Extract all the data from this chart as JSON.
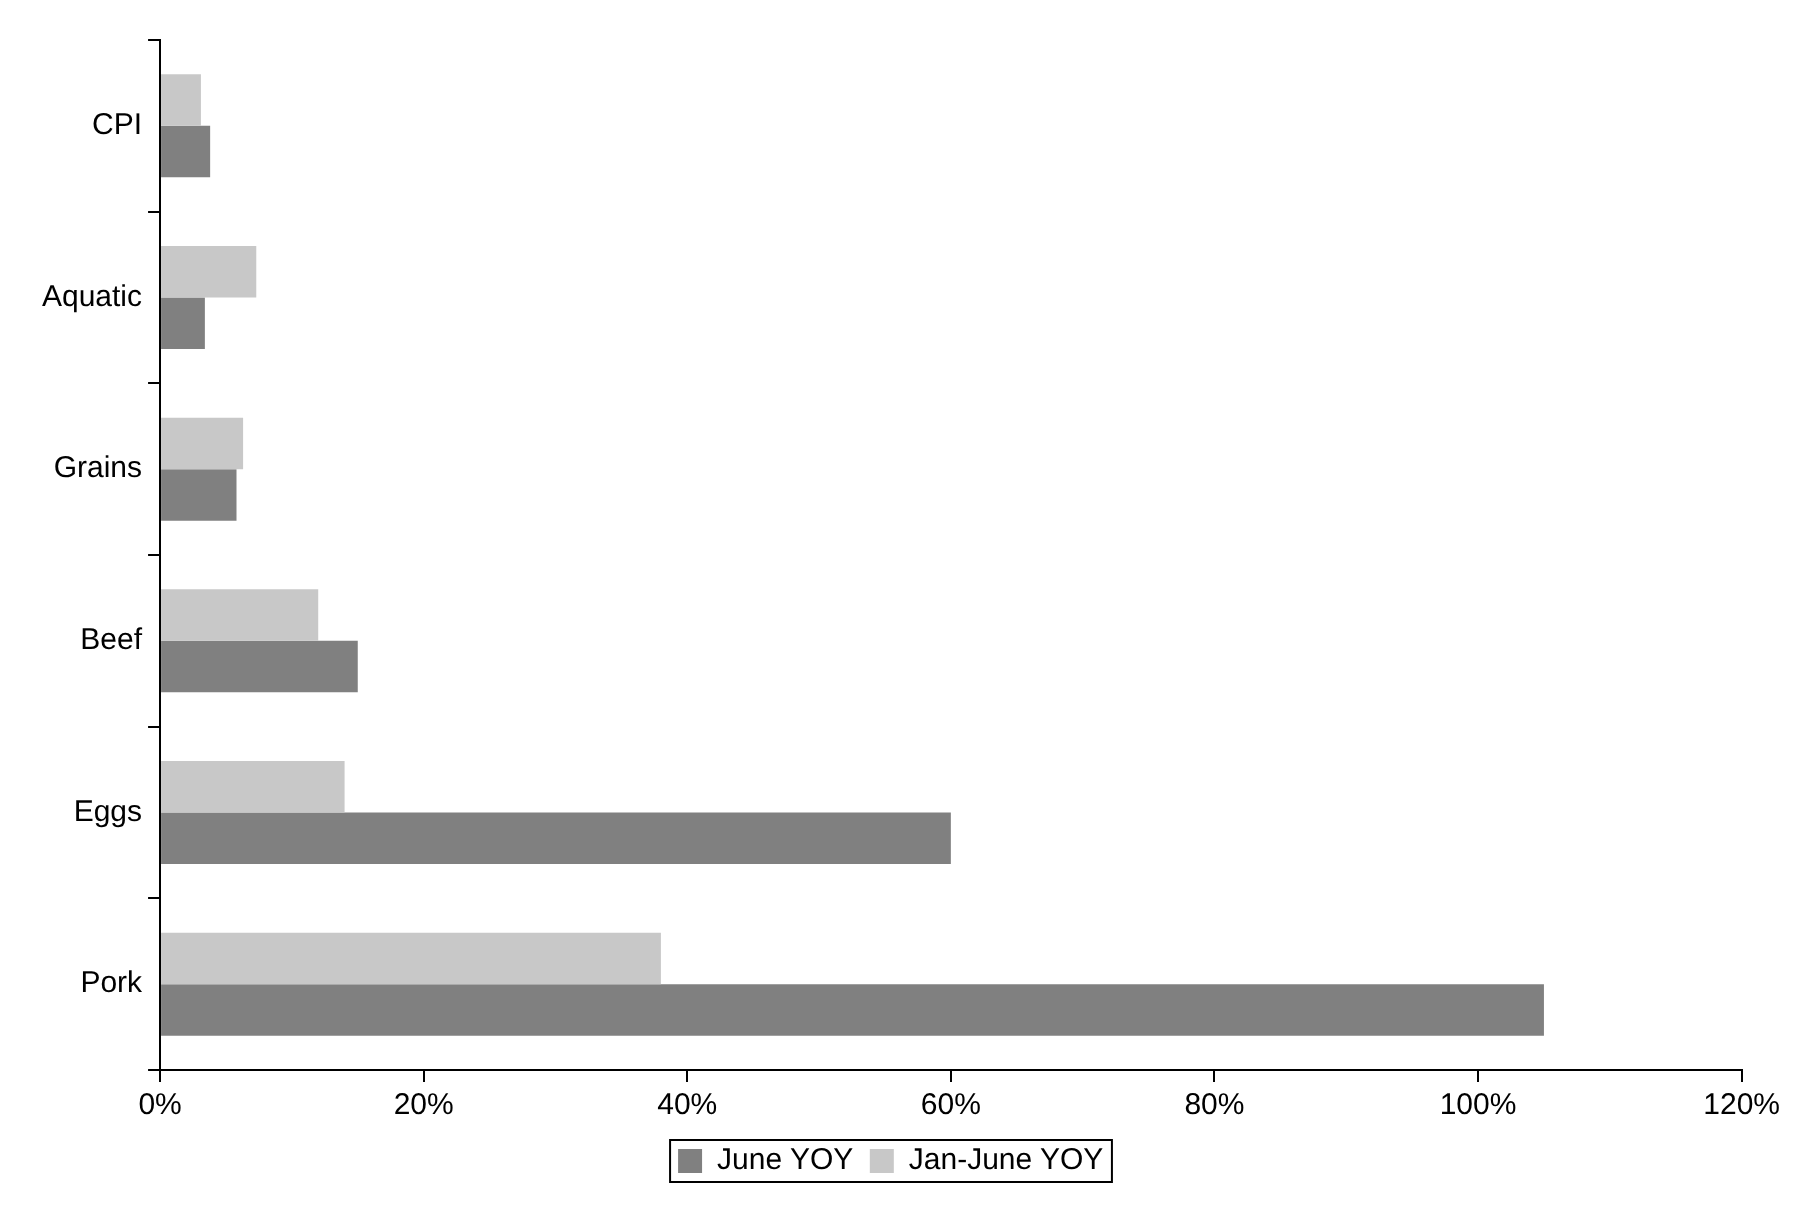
{
  "chart_data": {
    "type": "bar",
    "orientation": "horizontal",
    "categories": [
      "CPI",
      "Aquatic",
      "Grains",
      "Beef",
      "Eggs",
      "Pork"
    ],
    "series": [
      {
        "name": "June YOY",
        "color": "#808080",
        "values": [
          3.8,
          3.4,
          5.8,
          15,
          60,
          105
        ]
      },
      {
        "name": "Jan-June YOY",
        "color": "#c8c8c8",
        "values": [
          3.1,
          7.3,
          6.3,
          12,
          14,
          38
        ]
      }
    ],
    "xlim": [
      0,
      120
    ],
    "xticks": [
      {
        "value": 0,
        "label": "0%"
      },
      {
        "value": 20,
        "label": "20%"
      },
      {
        "value": 40,
        "label": "40%"
      },
      {
        "value": 60,
        "label": "60%"
      },
      {
        "value": 80,
        "label": "80%"
      },
      {
        "value": 100,
        "label": "100%"
      },
      {
        "value": 120,
        "label": "120%"
      }
    ],
    "grid": false,
    "legend": "bottom"
  }
}
